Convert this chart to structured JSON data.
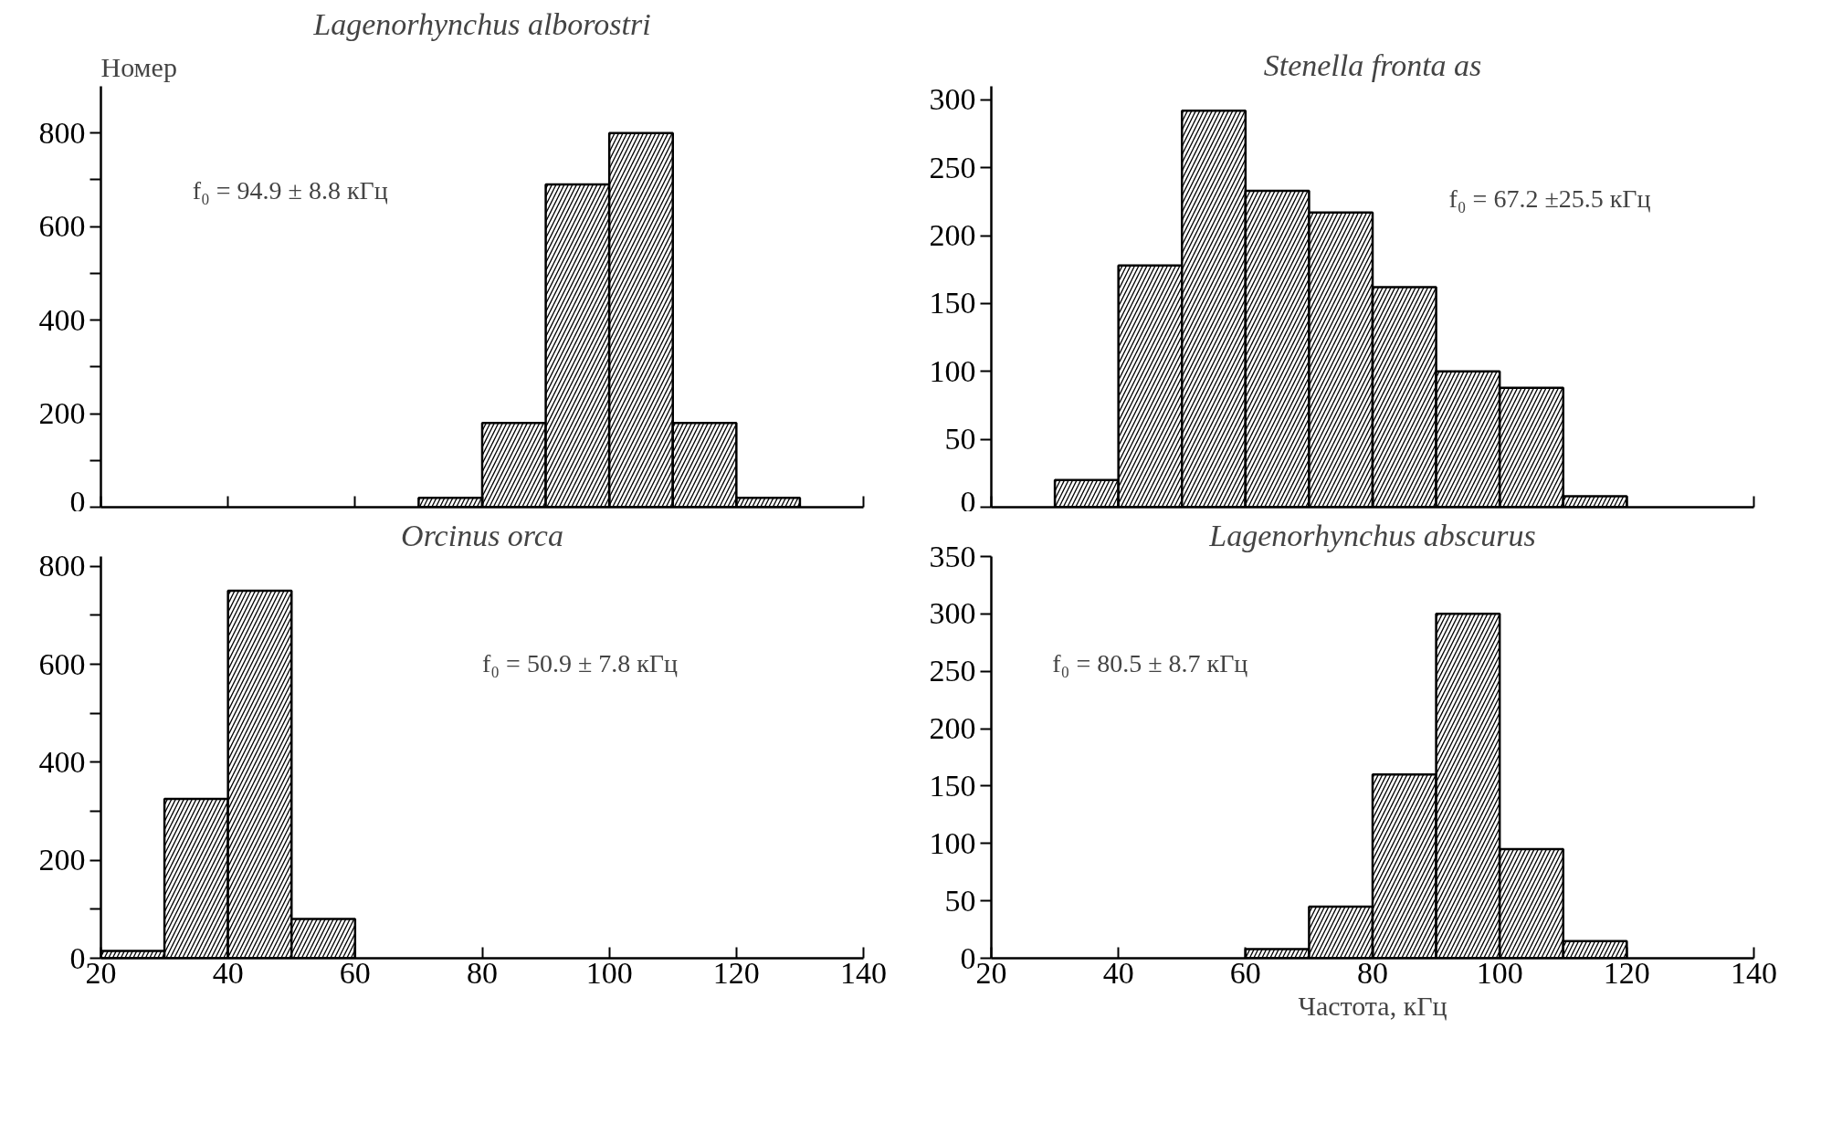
{
  "chart_data": [
    {
      "type": "histogram",
      "title": "Lagenorhynchus alborostri",
      "ylabel": "Номер",
      "color": "#000000",
      "bins": [
        70,
        80,
        90,
        100,
        110,
        120,
        130
      ],
      "values": [
        20,
        180,
        690,
        800,
        180,
        20
      ],
      "xlim": [
        20,
        140
      ],
      "xticks": [
        20,
        40,
        60,
        80,
        100,
        120,
        140
      ],
      "ylim": [
        0,
        900
      ],
      "yticks": [
        0,
        {
          "value": 100,
          "label": null
        },
        200,
        {
          "value": 300,
          "label": null
        },
        400,
        {
          "value": 500,
          "label": null
        },
        600,
        {
          "value": 700,
          "label": null
        },
        800
      ],
      "tick_labels": "y",
      "annotations": [
        "f₀ = 94.9 ± 8.8 кГц"
      ]
    },
    {
      "type": "histogram",
      "title": "Stenella fronta as",
      "color": "#000000",
      "bins": [
        30,
        40,
        50,
        60,
        70,
        80,
        90,
        100,
        110,
        120
      ],
      "values": [
        20,
        178,
        292,
        233,
        217,
        162,
        100,
        88,
        8
      ],
      "xlim": [
        20,
        140
      ],
      "xticks": [
        20,
        40,
        60,
        80,
        100,
        120,
        140
      ],
      "ylim": [
        0,
        310
      ],
      "yticks": [
        0,
        50,
        100,
        150,
        200,
        250,
        300
      ],
      "tick_labels": "y",
      "annotations": [
        "f₀ = 67.2 ±25.5 кГц"
      ]
    },
    {
      "type": "histogram",
      "title": "Orcinus orca",
      "color": "#000000",
      "bins": [
        20,
        30,
        40,
        50,
        60
      ],
      "values": [
        15,
        325,
        750,
        80
      ],
      "xlim": [
        20,
        140
      ],
      "xticks": [
        20,
        40,
        60,
        80,
        100,
        120,
        140
      ],
      "ylim": [
        0,
        820
      ],
      "yticks": [
        0,
        {
          "value": 100,
          "label": null
        },
        200,
        {
          "value": 300,
          "label": null
        },
        400,
        {
          "value": 500,
          "label": null
        },
        600,
        {
          "value": 700,
          "label": null
        },
        800
      ],
      "annotations": [
        "f₀ = 50.9 ± 7.8 кГц"
      ]
    },
    {
      "type": "histogram",
      "title": "Lagenorhynchus abscurus",
      "xlabel": "Частота, кГц",
      "color": "#000000",
      "bins": [
        60,
        70,
        80,
        90,
        100,
        110,
        120
      ],
      "values": [
        8,
        45,
        160,
        300,
        95,
        15
      ],
      "xlim": [
        20,
        140
      ],
      "xticks": [
        20,
        40,
        60,
        80,
        100,
        120,
        140
      ],
      "ylim": [
        0,
        350
      ],
      "yticks": [
        0,
        50,
        100,
        150,
        200,
        250,
        300,
        350
      ],
      "annotations": [
        "f₀ = 80.5 ± 8.7 кГц"
      ]
    }
  ]
}
